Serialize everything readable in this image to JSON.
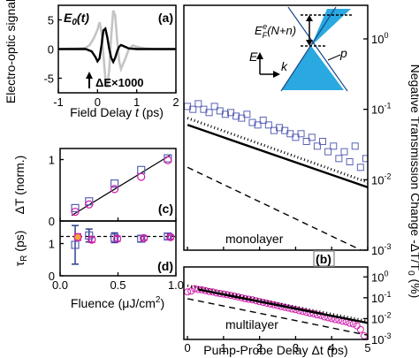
{
  "colors": {
    "gray": "#c4c4c4",
    "blue": "#5a62b4",
    "magenta": "#d11caa",
    "cyan": "#29a9e0",
    "navy": "#2d3f8c",
    "orange": "#f4a637"
  },
  "chart_data": [
    {
      "panel": "(a)",
      "type": "line",
      "xlabel": "Field Delay t (ps)",
      "ylabel": "Electro-optic signal",
      "xlim": [
        -1,
        2
      ],
      "ylim": [
        -7.5,
        7.5
      ],
      "xticks": [
        "-1",
        "0",
        "1",
        "2"
      ],
      "yticks": [
        "-5",
        "0",
        "5"
      ],
      "series": [
        {
          "name": "E0(t)",
          "color": "gray",
          "x": [
            -1.0,
            -0.5,
            -0.3,
            -0.2,
            -0.1,
            0.0,
            0.05,
            0.1,
            0.15,
            0.2,
            0.25,
            0.3,
            0.35,
            0.4,
            0.45,
            0.5,
            0.55,
            0.6,
            0.7,
            0.8,
            0.9,
            1.0,
            1.2,
            1.5,
            2.0
          ],
          "y": [
            0,
            0.1,
            0.2,
            0.7,
            1.8,
            3.3,
            4.6,
            3.0,
            -1.0,
            -5.0,
            -6.6,
            -3.5,
            2.2,
            6.6,
            5.8,
            1.6,
            -2.0,
            -3.4,
            -1.8,
            0.0,
            0.6,
            0.4,
            0.1,
            0,
            0
          ]
        },
        {
          "name": "ΔE×1000",
          "color": "black",
          "x": [
            -1.0,
            -0.3,
            -0.15,
            -0.05,
            0.0,
            0.05,
            0.1,
            0.15,
            0.2,
            0.25,
            0.3,
            0.35,
            0.4,
            0.45,
            0.5,
            0.55,
            0.6,
            0.7,
            0.8,
            1.0,
            1.3,
            1.6,
            2.0
          ],
          "y": [
            0,
            0,
            -0.4,
            -1.4,
            -2.1,
            -1.6,
            0.6,
            3.2,
            3.5,
            2.0,
            0.0,
            -1.5,
            -2.2,
            -1.5,
            -0.4,
            0.4,
            0.7,
            0.4,
            0.1,
            0,
            0,
            0,
            0
          ]
        }
      ]
    },
    {
      "panel": "(c)",
      "type": "scatter",
      "ylabel": "ΔT (norm.)",
      "xlim": [
        0,
        1
      ],
      "ylim": [
        0,
        1.18
      ],
      "yticks": [
        "0",
        "1"
      ],
      "fit": {
        "x": [
          0.1,
          0.95
        ],
        "y": [
          0.09,
          1.07
        ]
      },
      "series": [
        {
          "marker": "square",
          "color": "blue",
          "x": [
            0.13,
            0.25,
            0.47,
            0.7,
            0.93
          ],
          "y": [
            0.21,
            0.32,
            0.61,
            0.83,
            1.02
          ]
        },
        {
          "marker": "circle",
          "color": "magenta",
          "x": [
            0.13,
            0.25,
            0.47,
            0.7,
            0.93
          ],
          "y": [
            0.15,
            0.27,
            0.52,
            0.72,
            0.99
          ]
        }
      ]
    },
    {
      "panel": "(d)",
      "type": "scatter",
      "xlabel": "Fluence (μJ/cm2)",
      "ylabel": "τR (ps)",
      "xlim": [
        0,
        1
      ],
      "ylim": [
        0,
        1.7
      ],
      "xticks": [
        "0.0",
        "0.5",
        "1.0"
      ],
      "yticks": [
        "0",
        "1"
      ],
      "reference": 1.22,
      "series": [
        {
          "marker": "square",
          "color": "blue",
          "x": [
            0.13,
            0.25,
            0.47,
            0.7,
            0.93
          ],
          "y": [
            0.96,
            1.25,
            1.18,
            1.15,
            1.22
          ],
          "err": [
            0.6,
            0.2,
            0.15,
            0.1,
            0.1
          ]
        },
        {
          "marker": "circle",
          "color": "magenta",
          "x": [
            0.13,
            0.25,
            0.47,
            0.7,
            0.93
          ],
          "y": [
            1.2,
            1.12,
            1.15,
            1.17,
            1.2
          ],
          "err": [
            0.1,
            0.08,
            0.08,
            0.06,
            0.06
          ]
        }
      ]
    },
    {
      "panel": "(b) monolayer",
      "type": "scatter",
      "scale": "log",
      "ylabel": "Negative Transmission Change -ΔT/T0 (%)",
      "xlim": [
        -0.1,
        5
      ],
      "ylim": [
        0.001,
        3
      ],
      "yticks": [
        "10^0",
        "10^-1",
        "10^-2",
        "10^-3"
      ],
      "series": [
        {
          "marker": "square",
          "color": "blue",
          "x": [
            0,
            0.15,
            0.3,
            0.45,
            0.6,
            0.75,
            0.9,
            1.05,
            1.2,
            1.35,
            1.5,
            1.65,
            1.8,
            1.95,
            2.1,
            2.25,
            2.4,
            2.55,
            2.7,
            2.85,
            3.0,
            3.15,
            3.3,
            3.45,
            3.6,
            3.75,
            3.9,
            4.05,
            4.2,
            4.35,
            4.5,
            4.65,
            4.8,
            4.95
          ],
          "y": [
            0.11,
            0.1,
            0.12,
            0.1,
            0.09,
            0.11,
            0.095,
            0.085,
            0.09,
            0.08,
            0.075,
            0.085,
            0.065,
            0.06,
            0.07,
            0.06,
            0.05,
            0.055,
            0.05,
            0.045,
            0.04,
            0.045,
            0.035,
            0.04,
            0.03,
            0.035,
            0.025,
            0.03,
            0.02,
            0.025,
            0.018,
            0.03,
            0.015,
            0.02
          ]
        },
        {
          "name": "fit",
          "style": "solid",
          "x": [
            0,
            5
          ],
          "y": [
            0.06,
            0.0078
          ]
        },
        {
          "name": "dotted",
          "style": "dotted",
          "x": [
            0,
            5
          ],
          "y": [
            0.075,
            0.0092
          ]
        },
        {
          "name": "dashed",
          "style": "dashed",
          "x": [
            0,
            5
          ],
          "y": [
            0.015,
            0.0009
          ]
        }
      ],
      "annotations": [
        "monolayer",
        "E",
        "k",
        "p"
      ]
    },
    {
      "panel": "(b) multilayer",
      "type": "scatter",
      "scale": "log",
      "xlabel": "Pump-Probe Delay Δt (ps)",
      "xlim": [
        -0.1,
        5
      ],
      "ylim": [
        0.001,
        3
      ],
      "xticks": [
        "0",
        "1",
        "2",
        "3",
        "4",
        "5"
      ],
      "yticks": [
        "10^0",
        "10^-1",
        "10^-2",
        "10^-3"
      ],
      "series": [
        {
          "marker": "circle",
          "color": "magenta",
          "x": [
            0,
            0.1,
            0.2,
            0.3,
            0.4,
            0.5,
            0.6,
            0.7,
            0.8,
            0.9,
            1.0,
            1.1,
            1.2,
            1.3,
            1.4,
            1.5,
            1.6,
            1.7,
            1.8,
            1.9,
            2.0,
            2.1,
            2.2,
            2.3,
            2.4,
            2.5,
            2.6,
            2.7,
            2.8,
            2.9,
            3.0,
            3.1,
            3.2,
            3.3,
            3.4,
            3.5,
            3.6,
            3.7,
            3.8,
            3.9,
            4.0,
            4.1,
            4.2,
            4.3,
            4.4,
            4.5,
            4.6,
            4.7,
            4.8,
            4.9
          ],
          "y": [
            0.19,
            0.21,
            0.27,
            0.25,
            0.24,
            0.22,
            0.2,
            0.19,
            0.17,
            0.16,
            0.15,
            0.14,
            0.13,
            0.12,
            0.11,
            0.1,
            0.09,
            0.085,
            0.08,
            0.072,
            0.065,
            0.06,
            0.055,
            0.05,
            0.046,
            0.042,
            0.038,
            0.035,
            0.032,
            0.029,
            0.027,
            0.024,
            0.022,
            0.02,
            0.018,
            0.017,
            0.015,
            0.014,
            0.012,
            0.011,
            0.01,
            0.009,
            0.0085,
            0.0075,
            0.007,
            0.006,
            0.0055,
            0.0045,
            0.003,
            0.0015
          ]
        },
        {
          "name": "fit",
          "style": "solid",
          "x": [
            0.3,
            5
          ],
          "y": [
            0.25,
            0.0062
          ]
        },
        {
          "name": "dotted",
          "style": "dotted",
          "x": [
            0,
            5
          ],
          "y": [
            0.38,
            0.0075
          ]
        },
        {
          "name": "dashed",
          "style": "dashed",
          "x": [
            0,
            5
          ],
          "y": [
            0.09,
            0.0016
          ]
        }
      ],
      "annotations": [
        "multilayer"
      ]
    }
  ],
  "labels": {
    "a": "(a)",
    "b": "(b)",
    "c": "(c)",
    "d": "(d)",
    "e0_italic": "E",
    "e0_sub": "0",
    "e0_rest": "(t)",
    "delta_e": "ΔE×1000",
    "field_delay": "Field Delay ",
    "field_delay_t": "t",
    "field_delay_unit": " (ps)",
    "eo_signal": "Electro-optic signal",
    "delta_t_norm": "ΔT (norm.)",
    "tau_r": "τ",
    "tau_r_sub": "R",
    "tau_r_unit": " (ps)",
    "fluence": "Fluence (μJ/cm",
    "fluence_sup": "2",
    "fluence_close": ")",
    "pump_probe": "Pump-Probe Delay Δt (ps)",
    "neg_trans": "Negative Transmission Change  -ΔT/T",
    "neg_trans_sub": "0",
    "neg_trans_unit": " (%)",
    "monolayer": "monolayer",
    "multilayer": "multilayer",
    "ef_label": "E",
    "ef_sup": "e",
    "ef_sub": "F",
    "ef_rest": "(N+n)",
    "axis_E": "E",
    "axis_k": "k",
    "point_p": "p"
  }
}
